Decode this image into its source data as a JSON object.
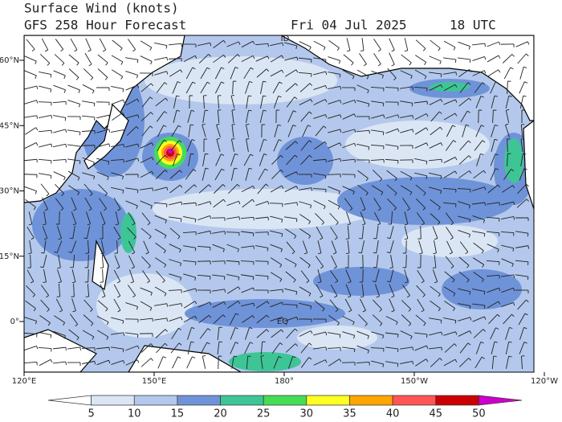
{
  "header": {
    "title": "Surface Wind (knots)",
    "subtitle": "GFS 258 Hour Forecast",
    "date": "Fri 04 Jul 2025",
    "time": "18 UTC"
  },
  "map": {
    "lat_labels": [
      "60°N",
      "45°N",
      "30°N",
      "15°N",
      "0°"
    ],
    "lon_labels": [
      "120°E",
      "150°E",
      "180°",
      "150°W",
      "120°W"
    ],
    "annotations": [
      "ID",
      "EQ"
    ]
  },
  "colorbar": {
    "ticks": [
      5,
      10,
      15,
      20,
      25,
      30,
      35,
      40,
      45,
      50
    ],
    "colors": [
      "#ffffff",
      "#dbe6f5",
      "#b3c8ec",
      "#6f93d8",
      "#3ec596",
      "#44dd55",
      "#ffff22",
      "#ffa500",
      "#ff5555",
      "#cc0000",
      "#cc00cc"
    ]
  }
}
